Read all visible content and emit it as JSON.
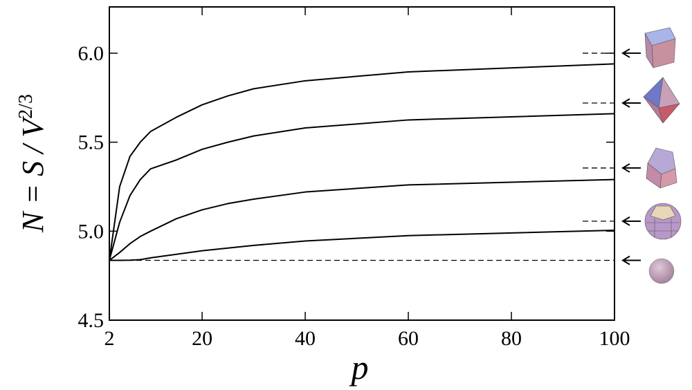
{
  "chart_data": {
    "type": "line",
    "x_label": "p",
    "y_label": {
      "main": "N = S / V",
      "superscript": "2/3"
    },
    "x": [
      2,
      4,
      6,
      8,
      10,
      15,
      20,
      25,
      30,
      40,
      60,
      100
    ],
    "series": [
      {
        "color": "#000000",
        "values": [
          4.836,
          5.25,
          5.42,
          5.5,
          5.56,
          5.64,
          5.71,
          5.76,
          5.8,
          5.845,
          5.895,
          5.94
        ]
      },
      {
        "color": "#000000",
        "values": [
          4.836,
          5.05,
          5.2,
          5.29,
          5.35,
          5.4,
          5.46,
          5.5,
          5.535,
          5.58,
          5.625,
          5.66
        ]
      },
      {
        "color": "#000000",
        "values": [
          4.836,
          4.88,
          4.93,
          4.97,
          5.0,
          5.07,
          5.12,
          5.155,
          5.18,
          5.22,
          5.26,
          5.29
        ]
      },
      {
        "color": "#000000",
        "values": [
          4.836,
          4.836,
          4.837,
          4.84,
          4.85,
          4.87,
          4.89,
          4.905,
          4.92,
          4.945,
          4.975,
          5.005
        ]
      }
    ],
    "reference_lines": [
      {
        "value": 6.0,
        "extent": "short"
      },
      {
        "value": 5.72,
        "extent": "short"
      },
      {
        "value": 5.355,
        "extent": "short"
      },
      {
        "value": 5.056,
        "extent": "short"
      },
      {
        "value": 4.836,
        "extent": "full"
      }
    ],
    "xlim": [
      2,
      100
    ],
    "xticks": [
      2,
      20,
      40,
      60,
      80,
      100
    ],
    "ylim": [
      4.5,
      6.26
    ],
    "yticks": [
      4.5,
      {
        "value": 5,
        "label": "5.0"
      },
      5.5,
      {
        "value": 6,
        "label": "6.0"
      }
    ]
  }
}
